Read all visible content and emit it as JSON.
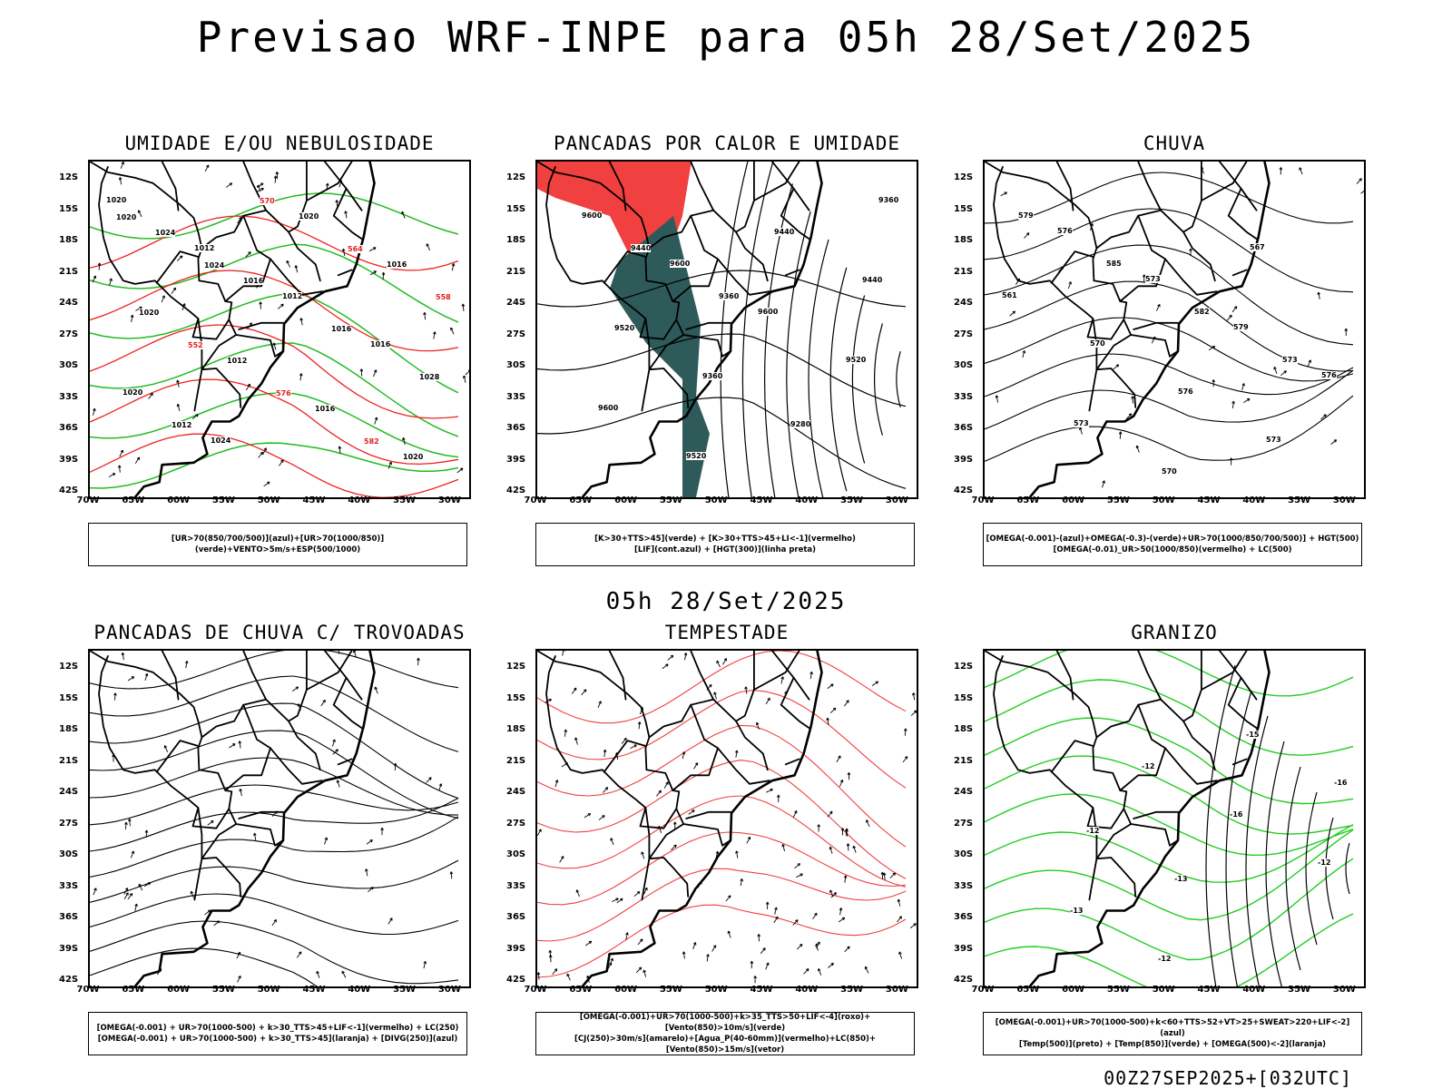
{
  "title": "Previsao WRF-INPE  para 05h 28/Set/2025",
  "mid_title": "05h 28/Set/2025",
  "footer": "00Z27SEP2025+[032UTC]",
  "lat_labels": [
    "12S",
    "15S",
    "18S",
    "21S",
    "24S",
    "27S",
    "30S",
    "33S",
    "36S",
    "39S",
    "42S"
  ],
  "lon_labels": [
    "70W",
    "65W",
    "60W",
    "55W",
    "50W",
    "45W",
    "40W",
    "35W",
    "30W"
  ],
  "panels": [
    {
      "title": "UMIDADE E/OU NEBULOSIDADE",
      "legend": [
        "[UR>70(850/700/500)](azul)+[UR>70(1000/850)](verde)+VENTO>5m/s+ESP(500/1000)"
      ],
      "labels": [
        "1020",
        "1012",
        "1012",
        "1016",
        "1020",
        "1024",
        "1020",
        "1016",
        "1020",
        "1012",
        "1016",
        "1020",
        "1024",
        "1016",
        "1016",
        "1028",
        "1012",
        "570",
        "564",
        "558",
        "552",
        "576",
        "582",
        "1020",
        "1024"
      ]
    },
    {
      "title": "PANCADAS POR CALOR E UMIDADE",
      "legend": [
        "[K>30+TTS>45](verde) + [K>30+TTS>45+LI<-1](vermelho)",
        "[LIF](cont.azul) + [HGT(300)](linha preta)"
      ],
      "labels": [
        "9600",
        "9600",
        "9600",
        "9520",
        "9600",
        "9520",
        "9440",
        "9440",
        "9520",
        "9360",
        "9280",
        "9360",
        "9440",
        "9360"
      ]
    },
    {
      "title": "CHUVA",
      "legend": [
        "[OMEGA(-0.001)-(azul)+OMEGA(-0.3)-(verde)+UR>70(1000/850/700/500)] + HGT(500)",
        "[OMEGA(-0.01)_UR>50(1000/850)(vermelho) + LC(500)"
      ],
      "labels": [
        "576",
        "573",
        "579",
        "576",
        "573",
        "570",
        "567",
        "561",
        "570",
        "576",
        "573",
        "579",
        "585",
        "582",
        "573"
      ]
    },
    {
      "title": "PANCADAS DE CHUVA C/ TROVOADAS",
      "legend": [
        "[OMEGA(-0.001) + UR>70(1000-500) + k>30_TTS>45+LIF<-1](vermelho) + LC(250)",
        "[OMEGA(-0.001) + UR>70(1000-500) + k>30_TTS>45](laranja) + [DIVG(250)](azul)"
      ],
      "labels": []
    },
    {
      "title": "TEMPESTADE",
      "legend": [
        "[OMEGA(-0.001)+UR>70(1000-500)+k>35_TTS>50+LIF<-4](roxo)+[Vento(850)>10m/s](verde)",
        "[CJ(250)>30m/s](amarelo)+[Agua_P(40-60mm)](vermelho)+LC(850)+[Vento(850)>15m/s](vetor)"
      ],
      "labels": []
    },
    {
      "title": "GRANIZO",
      "legend": [
        "[OMEGA(-0.001)+UR>70(1000-500)+k<60+TTS>52+VT>25+SWEAT>220+LIF<-2](azul)",
        "[Temp(500)](preto) + [Temp(850)](verde) + [OMEGA(500)<-2](laranja)"
      ],
      "labels": [
        "-12",
        "-16",
        "-12",
        "-13",
        "-12",
        "-15",
        "-16",
        "-12",
        "-13"
      ]
    }
  ]
}
